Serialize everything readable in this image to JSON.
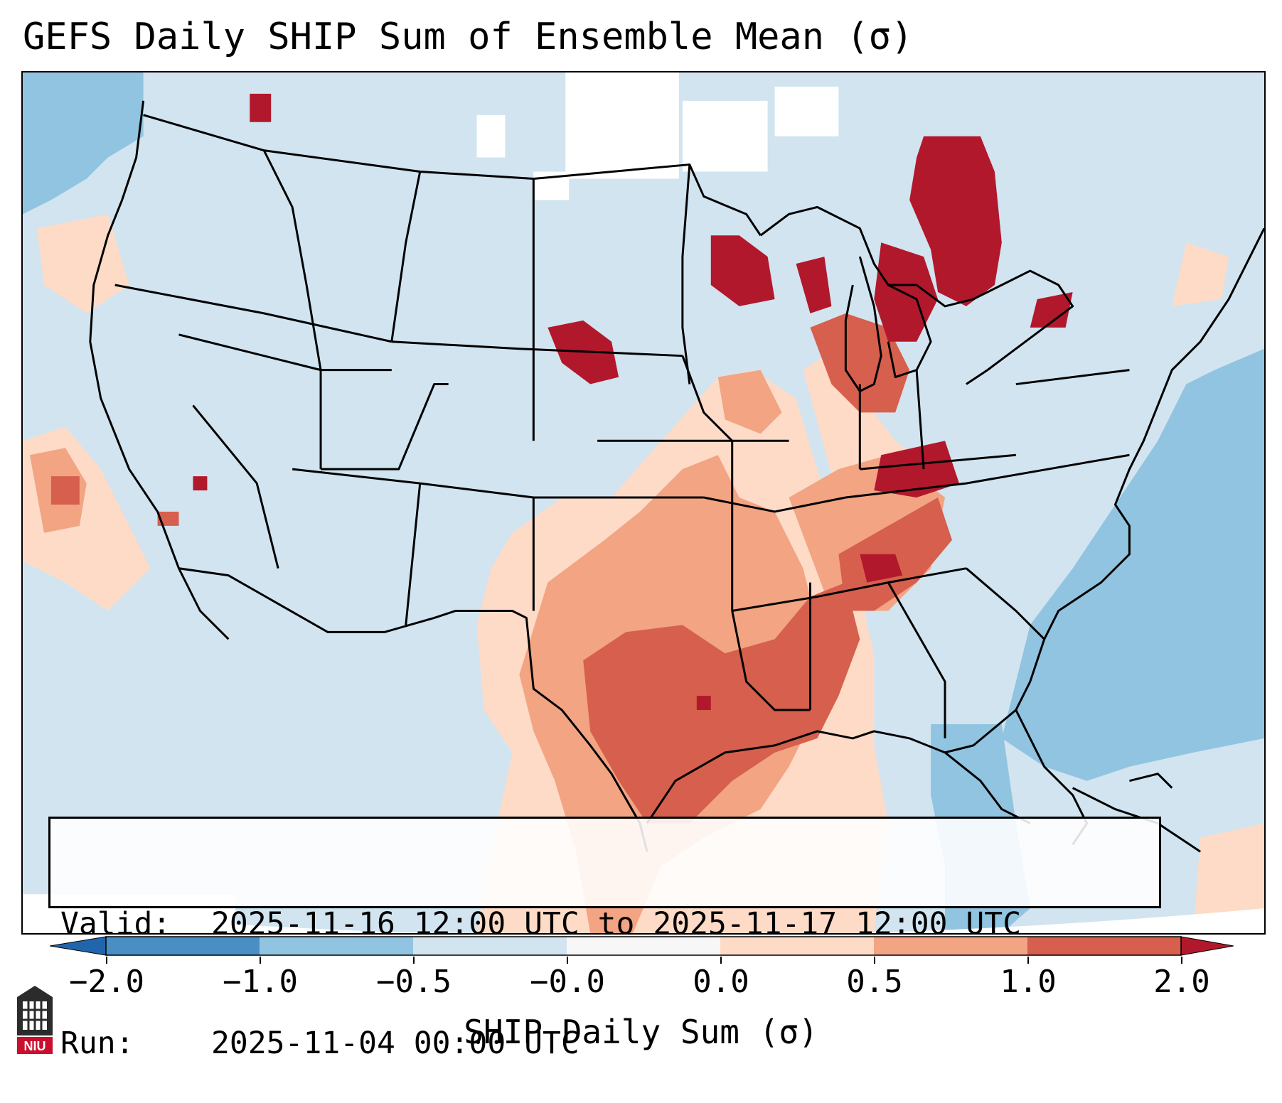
{
  "title": "GEFS Daily SHIP Sum of Ensemble Mean (σ)",
  "info": {
    "valid_label": "Valid:",
    "valid_value": "2025-11-16 12:00 UTC to 2025-11-17 12:00 UTC",
    "run_label": "Run:",
    "run_value": "2025-11-04 00:00 UTC"
  },
  "colorbar": {
    "title": "SHIP Daily Sum (σ)",
    "tick_labels": [
      "−2.0",
      "−1.0",
      "−0.5",
      "−0.0",
      "0.0",
      "0.5",
      "1.0",
      "2.0"
    ],
    "colors": [
      "#4a8fc4",
      "#91c4e0",
      "#d1e4f0",
      "#f7f7f7",
      "#fddbc7",
      "#f2a483",
      "#d6604d",
      "#b2182b"
    ]
  },
  "logo": {
    "text": "NIU",
    "color": "#c8102e"
  },
  "colors": {
    "background": "#d1e4f0",
    "ocean_negative": "#91c4e0",
    "neutral": "#ffffff",
    "positive_light": "#fddbc7",
    "positive_mid": "#f2a483",
    "positive_high": "#d6604d",
    "positive_max": "#b2182b"
  }
}
